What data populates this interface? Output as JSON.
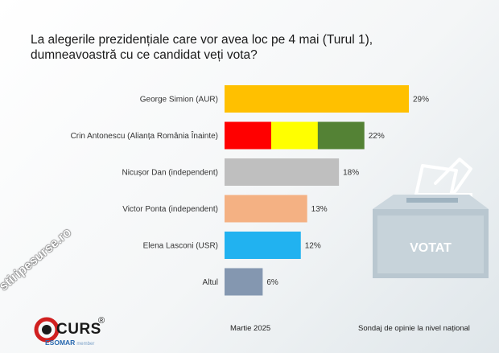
{
  "title_lines": [
    "La alegerile prezidențiale care vor avea loc pe 4 mai (Turul 1),",
    "dumneavoastră cu ce candidat veți vota?"
  ],
  "chart_data": {
    "type": "bar",
    "orientation": "horizontal",
    "title": "La alegerile prezidențiale care vor avea loc pe 4 mai (Turul 1), dumneavoastră cu ce candidat veți vota?",
    "categories": [
      "George Simion (AUR)",
      "Crin Antonescu (Alianța România Înainte)",
      "Nicușor Dan (independent)",
      "Victor Ponta (independent)",
      "Elena Lasconi (USR)",
      "Altul"
    ],
    "values": [
      29,
      22,
      18,
      13,
      12,
      6
    ],
    "value_labels": [
      "29%",
      "22%",
      "18%",
      "13%",
      "12%",
      "6%"
    ],
    "bar_colors": [
      [
        "#ffc000"
      ],
      [
        "#ff0000",
        "#ffff00",
        "#548235"
      ],
      [
        "#bfbfbf"
      ],
      [
        "#f4b183"
      ],
      [
        "#21b2f0"
      ],
      [
        "#8497b0"
      ]
    ],
    "xlim": [
      0,
      29
    ],
    "grid": false,
    "legend": "none",
    "xlabel": "",
    "ylabel": ""
  },
  "ballot": {
    "label": "VOTAT",
    "icon": "ballot-box-icon"
  },
  "footer": {
    "date": "Martie 2025",
    "note": "Sondaj de opinie la nivel național",
    "brand": "CURS",
    "registered": "®",
    "esomar": "ESOMAR",
    "esomar_member": "member",
    "watermark": "stiripesurse.ro"
  }
}
